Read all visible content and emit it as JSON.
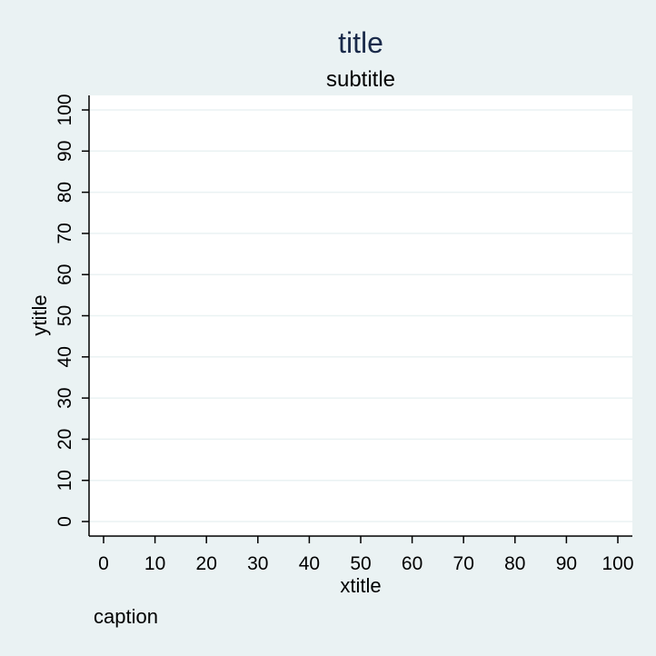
{
  "colors": {
    "background": "#eaf2f3",
    "plot_background": "#ffffff",
    "gridline": "#eaf2f3",
    "axis": "#000000",
    "title": "#1a2a4a",
    "text": "#000000"
  },
  "chart_data": {
    "type": "scatter",
    "title": "title",
    "subtitle": "subtitle",
    "caption": "caption",
    "xlabel": "xtitle",
    "ylabel": "ytitle",
    "xlim": [
      0,
      100
    ],
    "ylim": [
      0,
      100
    ],
    "x_ticks": [
      0,
      10,
      20,
      30,
      40,
      50,
      60,
      70,
      80,
      90,
      100
    ],
    "y_ticks": [
      0,
      10,
      20,
      30,
      40,
      50,
      60,
      70,
      80,
      90,
      100
    ],
    "grid": "horizontal",
    "series": []
  }
}
